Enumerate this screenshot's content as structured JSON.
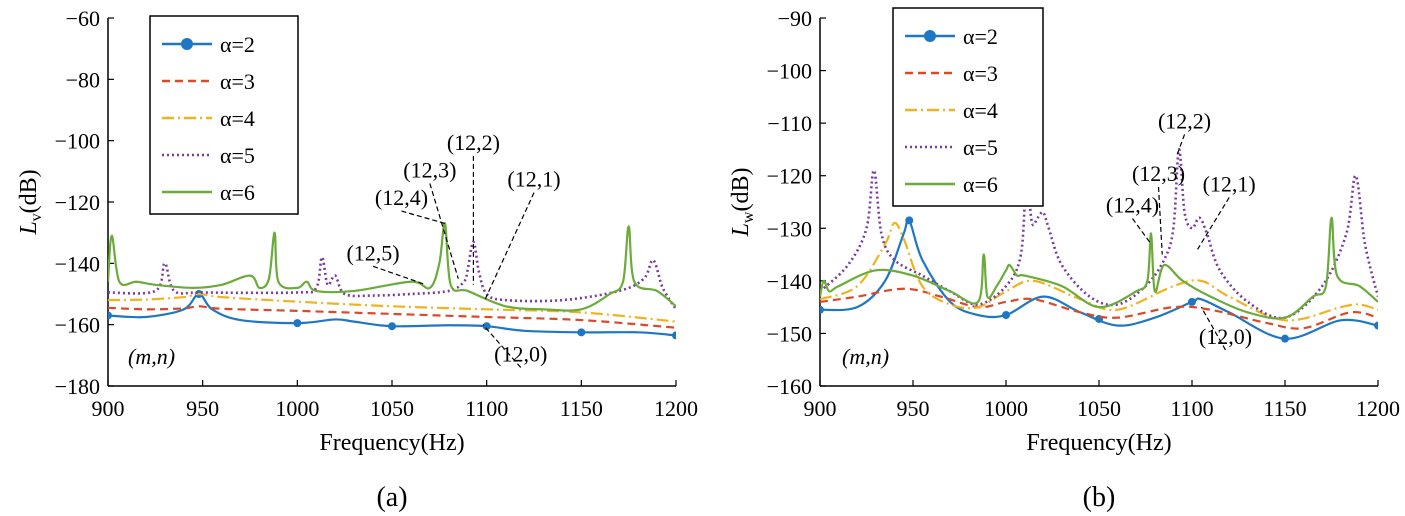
{
  "colors": {
    "a2": "#1f77c4",
    "a3": "#d94a2b",
    "a4": "#f1b21f",
    "a5": "#7a3aa0",
    "a6": "#6aab3a"
  },
  "chart_data": [
    {
      "type": "line",
      "caption": "(a)",
      "xlabel": "Frequency(Hz)",
      "ylabel": "L",
      "ylabel_sub": "v",
      "ylabel_unit": "(dB)",
      "xlim": [
        900,
        1200
      ],
      "ylim": [
        -180,
        -60
      ],
      "xticks": [
        900,
        950,
        1000,
        1050,
        1100,
        1150,
        1200
      ],
      "yticks": [
        -180,
        -160,
        -140,
        -120,
        -100,
        -80,
        -60
      ],
      "legend_position": "top-left",
      "mode_label": "(m,n)",
      "annotations": [
        {
          "text": "(12,5)",
          "at": [
            1068,
            -147
          ],
          "tx": 1040,
          "ty": -139
        },
        {
          "text": "(12,4)",
          "at": [
            1078,
            -127
          ],
          "tx": 1055,
          "ty": -121
        },
        {
          "text": "(12,3)",
          "at": [
            1085,
            -145
          ],
          "tx": 1070,
          "ty": -112
        },
        {
          "text": "(12,2)",
          "at": [
            1093,
            -147
          ],
          "tx": 1093,
          "ty": -103
        },
        {
          "text": "(12,1)",
          "at": [
            1099,
            -152
          ],
          "tx": 1125,
          "ty": -115
        },
        {
          "text": "(12,0)",
          "at": [
            1098,
            -160
          ],
          "tx": 1118,
          "ty": -172
        }
      ],
      "series": [
        {
          "name": "α=2",
          "color": "#1f77c4",
          "dash": "",
          "marker": true,
          "x": [
            900,
            920,
            940,
            948,
            955,
            970,
            1000,
            1020,
            1030,
            1050,
            1080,
            1100,
            1120,
            1150,
            1180,
            1200
          ],
          "y": [
            -157,
            -157.5,
            -155,
            -150,
            -155,
            -158.5,
            -159.5,
            -158.3,
            -159,
            -160.5,
            -160.2,
            -160.5,
            -162,
            -162.5,
            -162.5,
            -163.5
          ]
        },
        {
          "name": "α=3",
          "color": "#d94a2b",
          "dash": "8,5",
          "marker": false,
          "x": [
            900,
            920,
            940,
            948,
            960,
            1000,
            1050,
            1100,
            1150,
            1200
          ],
          "y": [
            -154.5,
            -155,
            -154.7,
            -154,
            -154.8,
            -155.5,
            -156.5,
            -157.5,
            -158.5,
            -161
          ]
        },
        {
          "name": "α=4",
          "color": "#f1b21f",
          "dash": "12,4,2,4",
          "marker": false,
          "x": [
            900,
            920,
            940,
            948,
            960,
            1000,
            1050,
            1100,
            1150,
            1200
          ],
          "y": [
            -152,
            -151.8,
            -151,
            -150,
            -151,
            -152.5,
            -154,
            -155,
            -156,
            -159
          ]
        },
        {
          "name": "α=5",
          "color": "#7a3aa0",
          "dash": "2,3",
          "marker": false,
          "x": [
            900,
            925,
            930,
            935,
            950,
            1000,
            1010,
            1013,
            1016,
            1020,
            1025,
            1040,
            1060,
            1080,
            1088,
            1090,
            1093,
            1096,
            1100,
            1110,
            1140,
            1170,
            1183,
            1188,
            1193,
            1200
          ],
          "y": [
            -149.5,
            -149,
            -140,
            -149,
            -149.5,
            -149.5,
            -148,
            -138,
            -147,
            -144,
            -150,
            -150.5,
            -150,
            -149,
            -146,
            -142,
            -133,
            -143,
            -150,
            -152,
            -152,
            -149,
            -145,
            -139,
            -148,
            -155
          ]
        },
        {
          "name": "α=6",
          "color": "#6aab3a",
          "dash": "",
          "marker": false,
          "x": [
            900,
            902,
            906,
            915,
            925,
            945,
            960,
            975,
            980,
            985,
            988,
            990,
            1000,
            1005,
            1010,
            1030,
            1060,
            1070,
            1075,
            1078,
            1081,
            1090,
            1110,
            1130,
            1150,
            1165,
            1172,
            1175,
            1178,
            1190,
            1200
          ],
          "y": [
            -146,
            -131,
            -146,
            -146,
            -147,
            -148,
            -147,
            -144,
            -148,
            -145,
            -130,
            -146,
            -148,
            -146,
            -149,
            -149,
            -146,
            -148,
            -140,
            -127,
            -147,
            -149,
            -154,
            -155,
            -155,
            -150,
            -146,
            -128,
            -146,
            -149,
            -154
          ]
        }
      ]
    },
    {
      "type": "line",
      "caption": "(b)",
      "xlabel": "Frequency(Hz)",
      "ylabel": "L",
      "ylabel_sub": "w",
      "ylabel_unit": "(dB)",
      "xlim": [
        900,
        1200
      ],
      "ylim": [
        -160,
        -90
      ],
      "xticks": [
        900,
        950,
        1000,
        1050,
        1100,
        1150,
        1200
      ],
      "yticks": [
        -160,
        -150,
        -140,
        -130,
        -120,
        -110,
        -100,
        -90
      ],
      "legend_position": "top-left",
      "mode_label": "(m,n)",
      "annotations": [
        {
          "text": "(12,4)",
          "at": [
            1078,
            -133
          ],
          "tx": 1068,
          "ty": -127
        },
        {
          "text": "(12,3)",
          "at": [
            1084,
            -135
          ],
          "tx": 1082,
          "ty": -121
        },
        {
          "text": "(12,2)",
          "at": [
            1092,
            -116
          ],
          "tx": 1096,
          "ty": -111
        },
        {
          "text": "(12,1)",
          "at": [
            1103,
            -134
          ],
          "tx": 1120,
          "ty": -123
        },
        {
          "text": "(12,0)",
          "at": [
            1105,
            -145
          ],
          "tx": 1118,
          "ty": -152
        }
      ],
      "series": [
        {
          "name": "α=2",
          "color": "#1f77c4",
          "dash": "",
          "marker": true,
          "x": [
            900,
            920,
            935,
            945,
            948,
            955,
            970,
            985,
            1000,
            1020,
            1040,
            1060,
            1080,
            1100,
            1105,
            1120,
            1150,
            1180,
            1200
          ],
          "y": [
            -145.5,
            -145,
            -140,
            -131,
            -128.5,
            -136,
            -144,
            -146.5,
            -146.5,
            -143,
            -146,
            -148.5,
            -147,
            -144,
            -143.5,
            -146,
            -151,
            -147.5,
            -148.5
          ]
        },
        {
          "name": "α=3",
          "color": "#d94a2b",
          "dash": "8,5",
          "marker": false,
          "x": [
            900,
            920,
            945,
            965,
            985,
            1000,
            1015,
            1040,
            1060,
            1090,
            1110,
            1140,
            1160,
            1185,
            1200
          ],
          "y": [
            -144,
            -143,
            -141.5,
            -143,
            -145,
            -144,
            -143.5,
            -146,
            -147,
            -145,
            -145.5,
            -148,
            -149,
            -146,
            -147
          ]
        },
        {
          "name": "α=4",
          "color": "#f1b21f",
          "dash": "12,4,2,4",
          "marker": false,
          "x": [
            900,
            920,
            935,
            940,
            945,
            955,
            970,
            985,
            1000,
            1015,
            1040,
            1060,
            1090,
            1105,
            1120,
            1150,
            1180,
            1190,
            1200
          ],
          "y": [
            -143.5,
            -141,
            -133,
            -129,
            -132,
            -141,
            -144.5,
            -145,
            -142,
            -140,
            -143.5,
            -145.5,
            -141,
            -140,
            -143,
            -147.5,
            -145,
            -144.5,
            -145.5
          ]
        },
        {
          "name": "α=5",
          "color": "#7a3aa0",
          "dash": "2,3",
          "marker": false,
          "x": [
            900,
            915,
            925,
            929,
            933,
            940,
            955,
            970,
            985,
            1000,
            1008,
            1011,
            1014,
            1017,
            1020,
            1023,
            1030,
            1045,
            1060,
            1075,
            1085,
            1090,
            1093,
            1096,
            1100,
            1104,
            1108,
            1115,
            1130,
            1150,
            1170,
            1183,
            1188,
            1193,
            1200
          ],
          "y": [
            -142,
            -137,
            -130,
            -119,
            -131,
            -136,
            -139,
            -142,
            -144.5,
            -141,
            -135,
            -121,
            -129,
            -128,
            -127,
            -130,
            -137,
            -143,
            -144.5,
            -141,
            -136,
            -130,
            -115,
            -127,
            -130,
            -128,
            -131,
            -138,
            -144,
            -147,
            -141,
            -131,
            -120,
            -133,
            -143
          ]
        },
        {
          "name": "α=6",
          "color": "#6aab3a",
          "dash": "",
          "marker": false,
          "x": [
            900,
            902,
            905,
            910,
            930,
            950,
            970,
            985,
            988,
            990,
            995,
            1000,
            1002,
            1006,
            1010,
            1030,
            1050,
            1070,
            1076,
            1078,
            1080,
            1085,
            1095,
            1110,
            1130,
            1150,
            1165,
            1172,
            1175,
            1178,
            1190,
            1200
          ],
          "y": [
            -143,
            -140,
            -142,
            -141,
            -138,
            -139,
            -142,
            -144,
            -135,
            -143,
            -141,
            -138,
            -137,
            -139,
            -139,
            -141,
            -145,
            -142,
            -140,
            -131,
            -142,
            -137,
            -140,
            -143,
            -146,
            -147,
            -143,
            -141,
            -128,
            -139,
            -141,
            -144
          ]
        }
      ]
    }
  ]
}
